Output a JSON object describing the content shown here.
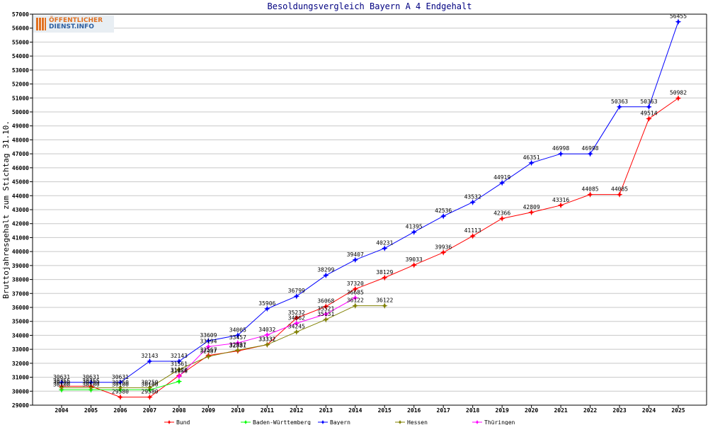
{
  "colors": {
    "background": "#ffffff",
    "plot_background": "#ffffff",
    "axis": "#000000",
    "grid": "#c8c8c8",
    "text": "#000000",
    "title": "#000080",
    "logo_orange": "#e07020",
    "logo_blue": "#2a5d9f"
  },
  "logo": {
    "line1": "ÖFFENTLICHER",
    "line2": "DIENST.INFO",
    "icon": "logo-mark-icon"
  },
  "chart_data": {
    "type": "line",
    "title": "Besoldungsvergleich Bayern A 4 Endgehalt",
    "xlabel": "",
    "ylabel": "Bruttojahresgehalt zum Stichtag 31.10.",
    "categories": [
      "2004",
      "2005",
      "2006",
      "2007",
      "2008",
      "2009",
      "2010",
      "2011",
      "2012",
      "2013",
      "2014",
      "2015",
      "2016",
      "2017",
      "2018",
      "2019",
      "2020",
      "2021",
      "2022",
      "2023",
      "2024",
      "2025"
    ],
    "ylim": [
      29000,
      57000
    ],
    "yticks": [
      29000,
      30000,
      31000,
      32000,
      33000,
      34000,
      35000,
      36000,
      37000,
      38000,
      39000,
      40000,
      41000,
      42000,
      43000,
      44000,
      45000,
      46000,
      47000,
      48000,
      49000,
      50000,
      51000,
      52000,
      53000,
      54000,
      55000,
      56000,
      57000
    ],
    "grid": "horizontal",
    "legend_position": "bottom",
    "series": [
      {
        "name": "Bund",
        "color": "#ff0000",
        "values": [
          30355,
          30355,
          29580,
          29580,
          31120,
          32567,
          32881,
          33332,
          35232,
          36068,
          37320,
          38129,
          39033,
          39936,
          41113,
          42366,
          42809,
          43316,
          44085,
          44085,
          49514,
          50982
        ]
      },
      {
        "name": "Baden-Württemberg",
        "color": "#00ff00",
        "values": [
          30100,
          30100,
          30100,
          30100,
          30700,
          null,
          null,
          null,
          null,
          null,
          null,
          null,
          null,
          null,
          null,
          null,
          null,
          null,
          null,
          null,
          null,
          null
        ]
      },
      {
        "name": "Bayern",
        "color": "#0000ff",
        "values": [
          30631,
          30631,
          30631,
          32143,
          32143,
          33609,
          34005,
          35906,
          36799,
          38299,
          39407,
          40231,
          41395,
          42536,
          43532,
          44919,
          46351,
          46998,
          46998,
          50363,
          50363,
          56455
        ]
      },
      {
        "name": "Hessen",
        "color": "#808000",
        "values": [
          30250,
          30250,
          30250,
          30250,
          31561,
          32487,
          32937,
          33332,
          34245,
          35131,
          36122,
          36122,
          null,
          null,
          null,
          null,
          null,
          null,
          null,
          null,
          null,
          null
        ]
      },
      {
        "name": "Thüringen",
        "color": "#ff00ff",
        "values": [
          null,
          null,
          null,
          null,
          31056,
          33194,
          33457,
          34032,
          34862,
          35521,
          36685,
          null,
          null,
          null,
          null,
          null,
          null,
          null,
          null,
          null,
          null,
          null
        ]
      }
    ],
    "data_labels": [
      {
        "series": "Bayern",
        "category": "2004",
        "text": "30631"
      },
      {
        "series": "Bayern",
        "category": "2005",
        "text": "30631"
      },
      {
        "series": "Bayern",
        "category": "2006",
        "text": "30631"
      },
      {
        "series": "Bayern",
        "category": "2007",
        "text": "32143"
      },
      {
        "series": "Bayern",
        "category": "2008",
        "text": "32143"
      },
      {
        "series": "Bayern",
        "category": "2009",
        "text": "33609"
      },
      {
        "series": "Bayern",
        "category": "2010",
        "text": "34005"
      },
      {
        "series": "Bayern",
        "category": "2011",
        "text": "35906"
      },
      {
        "series": "Bayern",
        "category": "2012",
        "text": "36799"
      },
      {
        "series": "Bayern",
        "category": "2013",
        "text": "38299"
      },
      {
        "series": "Bayern",
        "category": "2014",
        "text": "39407"
      },
      {
        "series": "Bayern",
        "category": "2015",
        "text": "40231"
      },
      {
        "series": "Bayern",
        "category": "2016",
        "text": "41395"
      },
      {
        "series": "Bayern",
        "category": "2017",
        "text": "42536"
      },
      {
        "series": "Bayern",
        "category": "2018",
        "text": "43532"
      },
      {
        "series": "Bayern",
        "category": "2019",
        "text": "44919"
      },
      {
        "series": "Bayern",
        "category": "2020",
        "text": "46351"
      },
      {
        "series": "Bayern",
        "category": "2021",
        "text": "46998"
      },
      {
        "series": "Bayern",
        "category": "2022",
        "text": "46998"
      },
      {
        "series": "Bayern",
        "category": "2023",
        "text": "50363"
      },
      {
        "series": "Bayern",
        "category": "2024",
        "text": "50363"
      },
      {
        "series": "Bayern",
        "category": "2025",
        "text": "56455"
      },
      {
        "series": "Bund",
        "category": "2004",
        "text": "30355"
      },
      {
        "series": "Bund",
        "category": "2005",
        "text": "30355"
      },
      {
        "series": "Bund",
        "category": "2006",
        "text": "29580"
      },
      {
        "series": "Bund",
        "category": "2007",
        "text": "29580"
      },
      {
        "series": "Bund",
        "category": "2008",
        "text": "31120"
      },
      {
        "series": "Bund",
        "category": "2009",
        "text": "32567"
      },
      {
        "series": "Bund",
        "category": "2010",
        "text": "32881"
      },
      {
        "series": "Bund",
        "category": "2011",
        "text": "33332"
      },
      {
        "series": "Bund",
        "category": "2012",
        "text": "35232"
      },
      {
        "series": "Bund",
        "category": "2013",
        "text": "36068"
      },
      {
        "series": "Bund",
        "category": "2014",
        "text": "37320"
      },
      {
        "series": "Bund",
        "category": "2015",
        "text": "38129"
      },
      {
        "series": "Bund",
        "category": "2016",
        "text": "39033"
      },
      {
        "series": "Bund",
        "category": "2017",
        "text": "39936"
      },
      {
        "series": "Bund",
        "category": "2018",
        "text": "41113"
      },
      {
        "series": "Bund",
        "category": "2019",
        "text": "42366"
      },
      {
        "series": "Bund",
        "category": "2020",
        "text": "42809"
      },
      {
        "series": "Bund",
        "category": "2021",
        "text": "43316"
      },
      {
        "series": "Bund",
        "category": "2022",
        "text": "44085"
      },
      {
        "series": "Bund",
        "category": "2023",
        "text": "44085"
      },
      {
        "series": "Bund",
        "category": "2024",
        "text": "49514"
      },
      {
        "series": "Bund",
        "category": "2025",
        "text": "50982"
      },
      {
        "series": "Hessen",
        "category": "2004",
        "text": "30250"
      },
      {
        "series": "Hessen",
        "category": "2005",
        "text": "30250"
      },
      {
        "series": "Hessen",
        "category": "2006",
        "text": "30250"
      },
      {
        "series": "Hessen",
        "category": "2007",
        "text": "30250"
      },
      {
        "series": "Hessen",
        "category": "2008",
        "text": "31561"
      },
      {
        "series": "Hessen",
        "category": "2009",
        "text": "32487"
      },
      {
        "series": "Hessen",
        "category": "2010",
        "text": "32937"
      },
      {
        "series": "Hessen",
        "category": "2011",
        "text": "33332"
      },
      {
        "series": "Hessen",
        "category": "2012",
        "text": "34245"
      },
      {
        "series": "Hessen",
        "category": "2013",
        "text": "35131"
      },
      {
        "series": "Hessen",
        "category": "2014",
        "text": "36122"
      },
      {
        "series": "Hessen",
        "category": "2015",
        "text": "36122"
      },
      {
        "series": "Baden-Württemberg",
        "category": "2004",
        "text": "30100"
      },
      {
        "series": "Baden-Württemberg",
        "category": "2005",
        "text": "30100"
      },
      {
        "series": "Baden-Württemberg",
        "category": "2006",
        "text": "30100"
      },
      {
        "series": "Baden-Württemberg",
        "category": "2007",
        "text": "30100"
      },
      {
        "series": "Thüringen",
        "category": "2008",
        "text": "31056"
      },
      {
        "series": "Thüringen",
        "category": "2009",
        "text": "33194"
      },
      {
        "series": "Thüringen",
        "category": "2010",
        "text": "33457"
      },
      {
        "series": "Thüringen",
        "category": "2011",
        "text": "34032"
      },
      {
        "series": "Thüringen",
        "category": "2012",
        "text": "34862"
      },
      {
        "series": "Thüringen",
        "category": "2013",
        "text": "35521"
      },
      {
        "series": "Thüringen",
        "category": "2014",
        "text": "36685"
      }
    ]
  }
}
